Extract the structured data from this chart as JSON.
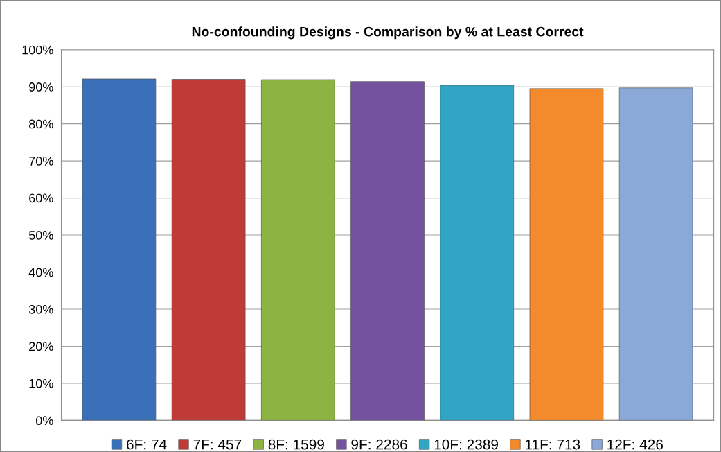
{
  "chart_data": {
    "type": "bar",
    "title": "No-confounding Designs - Comparison by % at Least Correct",
    "categories": [
      null
    ],
    "series": [
      {
        "name": "6F: 74",
        "color": "#3a70b8",
        "values": [
          92.1
        ]
      },
      {
        "name": "7F: 457",
        "color": "#c03a37",
        "values": [
          92.0
        ]
      },
      {
        "name": "8F: 1599",
        "color": "#8db443",
        "values": [
          91.9
        ]
      },
      {
        "name": "9F: 2286",
        "color": "#7452a0",
        "values": [
          91.4
        ]
      },
      {
        "name": "10F: 2389",
        "color": "#33a5c4",
        "values": [
          90.4
        ]
      },
      {
        "name": "11F: 713",
        "color": "#f38a2c",
        "values": [
          89.5
        ]
      },
      {
        "name": "12F: 426",
        "color": "#8aa9d8",
        "values": [
          89.7
        ]
      }
    ],
    "ylim": [
      0,
      100
    ],
    "yticks": [
      {
        "value": 0,
        "label": "0%"
      },
      {
        "value": 10,
        "label": "10%"
      },
      {
        "value": 20,
        "label": "20%"
      },
      {
        "value": 30,
        "label": "30%"
      },
      {
        "value": 40,
        "label": "40%"
      },
      {
        "value": 50,
        "label": "50%"
      },
      {
        "value": 60,
        "label": "60%"
      },
      {
        "value": 70,
        "label": "70%"
      },
      {
        "value": 80,
        "label": "80%"
      },
      {
        "value": 90,
        "label": "90%"
      },
      {
        "value": 100,
        "label": "100%"
      }
    ],
    "grid": "y",
    "legend": "bottom"
  }
}
